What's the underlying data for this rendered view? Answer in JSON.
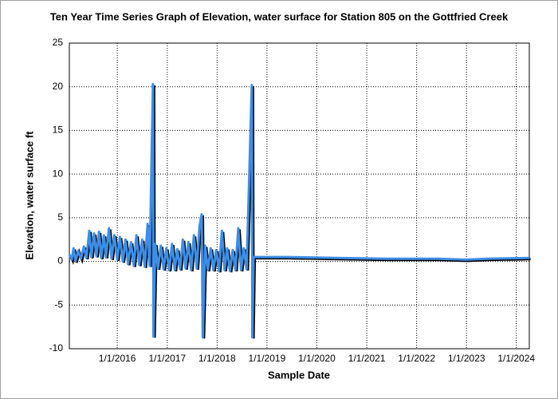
{
  "chart_data": {
    "type": "line",
    "title": "Ten Year Time Series Graph of Elevation, water surface for Station 805 on the Gottfried Creek",
    "xlabel": "Sample Date",
    "ylabel": "Elevation, water surface ft",
    "grid": true,
    "xlim": [
      "2015-01-15",
      "2024-04-05"
    ],
    "ylim": [
      -10,
      25
    ],
    "yticks": [
      -10,
      -5,
      0,
      5,
      10,
      15,
      20,
      25
    ],
    "xticks": [
      {
        "value": "2016-01-01",
        "label": "1/1/2016"
      },
      {
        "value": "2017-01-01",
        "label": "1/1/2017"
      },
      {
        "value": "2018-01-01",
        "label": "1/1/2018"
      },
      {
        "value": "2019-01-01",
        "label": "1/1/2019"
      },
      {
        "value": "2020-01-01",
        "label": "1/1/2020"
      },
      {
        "value": "2021-01-01",
        "label": "1/1/2021"
      },
      {
        "value": "2022-01-01",
        "label": "1/1/2022"
      },
      {
        "value": "2023-01-01",
        "label": "1/1/2023"
      },
      {
        "value": "2024-01-01",
        "label": "1/1/2024"
      }
    ],
    "x": [
      "2015-01-15",
      "2015-02-01",
      "2015-02-15",
      "2015-03-01",
      "2015-03-20",
      "2015-04-10",
      "2015-05-01",
      "2015-05-20",
      "2015-06-10",
      "2015-06-25",
      "2015-07-15",
      "2015-08-01",
      "2015-08-20",
      "2015-09-05",
      "2015-09-25",
      "2015-10-10",
      "2015-11-01",
      "2015-11-20",
      "2015-12-10",
      "2016-01-01",
      "2016-01-20",
      "2016-02-10",
      "2016-03-01",
      "2016-03-20",
      "2016-04-10",
      "2016-05-01",
      "2016-05-20",
      "2016-06-10",
      "2016-07-01",
      "2016-07-20",
      "2016-08-10",
      "2016-08-25",
      "2016-09-18",
      "2016-09-22",
      "2016-10-05",
      "2016-10-25",
      "2016-11-15",
      "2016-12-05",
      "2016-12-25",
      "2017-01-15",
      "2017-02-05",
      "2017-02-25",
      "2017-03-15",
      "2017-04-05",
      "2017-04-25",
      "2017-05-15",
      "2017-06-05",
      "2017-06-25",
      "2017-07-15",
      "2017-08-05",
      "2017-08-25",
      "2017-09-10",
      "2017-09-18",
      "2017-10-05",
      "2017-10-25",
      "2017-11-15",
      "2017-12-05",
      "2017-12-25",
      "2018-01-15",
      "2018-02-05",
      "2018-02-25",
      "2018-03-15",
      "2018-04-05",
      "2018-04-25",
      "2018-05-15",
      "2018-06-05",
      "2018-06-25",
      "2018-07-15",
      "2018-08-05",
      "2018-09-12",
      "2018-09-16",
      "2018-09-25",
      "2019-06-01",
      "2020-06-01",
      "2021-06-01",
      "2022-06-01",
      "2023-01-01",
      "2023-06-01",
      "2024-04-05"
    ],
    "series": [
      {
        "color": "#3d8ee6",
        "values": [
          0.8,
          0.2,
          1.5,
          0.0,
          1.2,
          0.3,
          1.7,
          0.4,
          3.5,
          0.5,
          3.2,
          0.6,
          3.4,
          0.4,
          3.0,
          0.5,
          3.8,
          0.3,
          3.0,
          0.2,
          2.8,
          0.0,
          2.5,
          -0.3,
          2.2,
          -0.5,
          3.0,
          -0.4,
          2.5,
          -0.6,
          4.3,
          -0.5,
          20.3,
          -8.6,
          2.0,
          -0.8,
          1.8,
          -0.9,
          1.5,
          -1.0,
          2.0,
          -1.0,
          1.4,
          -0.9,
          2.5,
          -0.8,
          2.2,
          -1.0,
          3.0,
          -0.8,
          4.0,
          5.4,
          -8.7,
          1.8,
          -1.0,
          1.5,
          -1.0,
          1.3,
          -1.1,
          3.5,
          -1.0,
          1.5,
          -1.1,
          1.3,
          -1.0,
          3.8,
          -1.0,
          1.5,
          -0.9,
          20.2,
          -8.7,
          0.5,
          0.5,
          0.4,
          0.3,
          0.3,
          0.2,
          0.3,
          0.4
        ]
      }
    ]
  }
}
